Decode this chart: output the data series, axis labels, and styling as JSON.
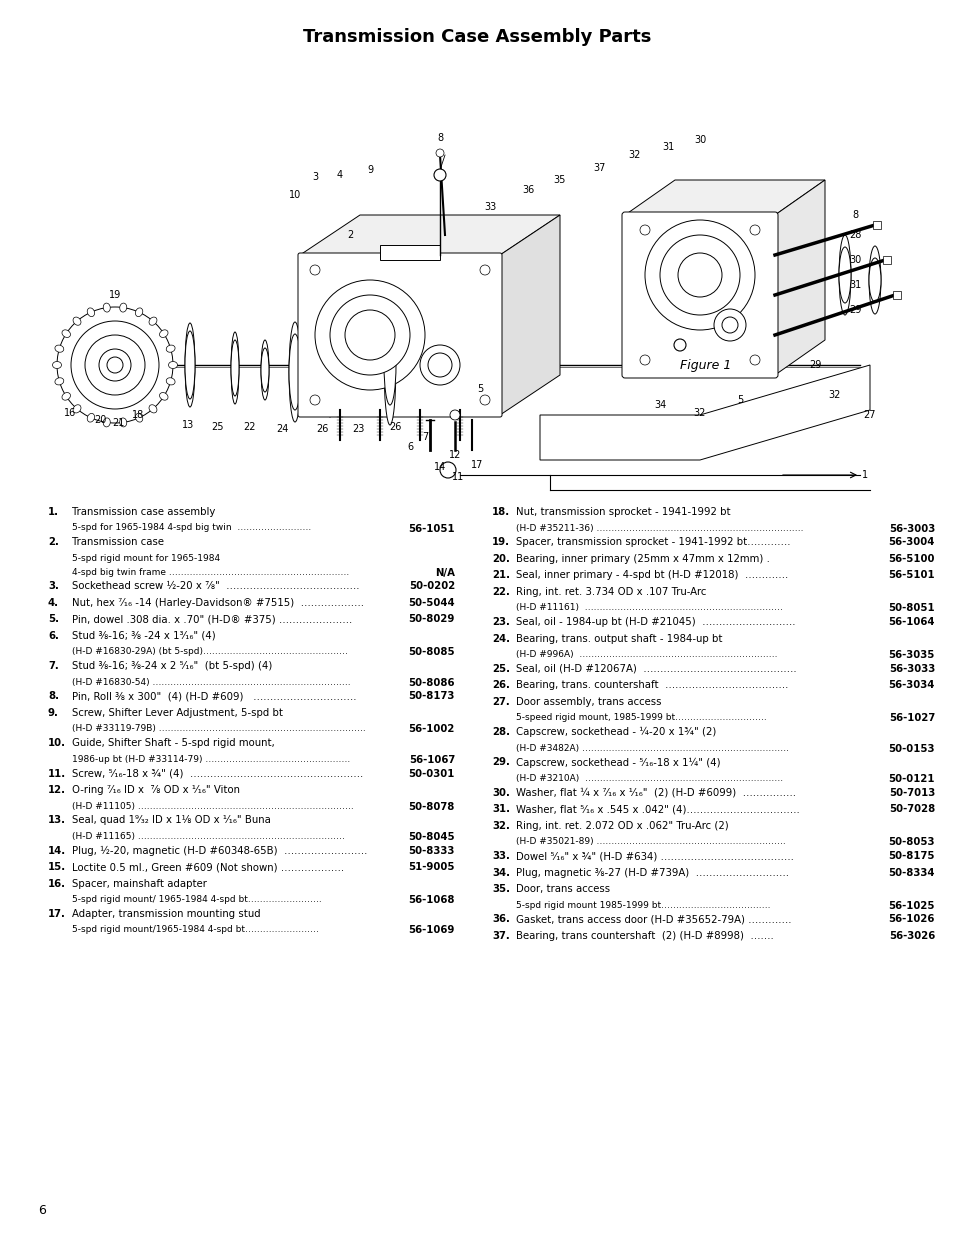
{
  "title": "Transmission Case Assembly Parts",
  "background_color": "#ffffff",
  "text_color": "#000000",
  "page_number": "6",
  "left_column": [
    {
      "num": "1.",
      "main": "Transmission case assembly",
      "sub": "5-spd for 1965-1984 4-spd big twin  …………………….",
      "part": "56-1051",
      "sub_has_part": true
    },
    {
      "num": "2.",
      "main": "Transmission case",
      "sub": "5-spd rigid mount for 1965-1984\n4-spd big twin frame …………………………………………………….",
      "part": "N/A",
      "sub_has_part": true
    },
    {
      "num": "3.",
      "main": "Sockethead screw ½-20 x ⅞\"  ………………………………….",
      "sub": "",
      "part": "50-0202",
      "sub_has_part": false
    },
    {
      "num": "4.",
      "main": "Nut, hex ⁷⁄₁₆ -14 (Harley-Davidson® #7515)  ……………….",
      "sub": "",
      "part": "50-5044",
      "sub_has_part": false
    },
    {
      "num": "5.",
      "main": "Pin, dowel .308 dia. x .70\" (H-D® #375) ………………….",
      "sub": "",
      "part": "50-8029",
      "sub_has_part": false
    },
    {
      "num": "6.",
      "main": "Stud ⅜-16; ⅜ -24 x 1³⁄₁₆\" (4)",
      "sub": "(H-D #16830-29A) (bt 5-spd)………………………………………….",
      "part": "50-8085",
      "sub_has_part": true
    },
    {
      "num": "7.",
      "main": "Stud ⅜-16; ⅜-24 x 2 ⁵⁄₁₆\"  (bt 5-spd) (4)",
      "sub": "(H-D #16830-54) ………………………………………………………….",
      "part": "50-8086",
      "sub_has_part": true
    },
    {
      "num": "8.",
      "main": "Pin, Roll ⅜ x 300\"  (4) (H-D #609)   ………………………….",
      "sub": "",
      "part": "50-8173",
      "sub_has_part": false
    },
    {
      "num": "9.",
      "main": "Screw, Shifter Lever Adjustment, 5-spd bt",
      "sub": "(H-D #33119-79B) …………………………………………………………….",
      "part": "56-1002",
      "sub_has_part": true
    },
    {
      "num": "10.",
      "main": "Guide, Shifter Shaft - 5-spd rigid mount,",
      "sub": "1986-up bt (H-D #33114-79) ………………………………………….",
      "part": "56-1067",
      "sub_has_part": true
    },
    {
      "num": "11.",
      "main": "Screw, ⁵⁄₁₆-18 x ¾\" (4)  …………………………………………….",
      "sub": "",
      "part": "50-0301",
      "sub_has_part": false
    },
    {
      "num": "12.",
      "main": "O-ring ⁷⁄₁₆ ID x  ⅞ OD x ¹⁄₁₆\" Viton",
      "sub": "(H-D #11105) ……………………………………………………………….",
      "part": "50-8078",
      "sub_has_part": true
    },
    {
      "num": "13.",
      "main": "Seal, quad 1⁹⁄₃₂ ID x 1⅛ OD x ¹⁄₁₆\" Buna",
      "sub": "(H-D #11165) …………………………………………………………….",
      "part": "50-8045",
      "sub_has_part": true
    },
    {
      "num": "14.",
      "main": "Plug, ½-20, magnetic (H-D #60348-65B)  …………………….",
      "sub": "",
      "part": "50-8333",
      "sub_has_part": false
    },
    {
      "num": "15.",
      "main": "Loctite 0.5 ml., Green #609 (Not shown) ……………….",
      "sub": "",
      "part": "51-9005",
      "sub_has_part": false
    },
    {
      "num": "16.",
      "main": "Spacer, mainshaft adapter",
      "sub": "5-spd rigid mount/ 1965-1984 4-spd bt…………………….",
      "part": "56-1068",
      "sub_has_part": true
    },
    {
      "num": "17.",
      "main": "Adapter, transmission mounting stud",
      "sub": "5-spd rigid mount/1965-1984 4-spd bt…………………….",
      "part": "56-1069",
      "sub_has_part": true
    }
  ],
  "right_column": [
    {
      "num": "18.",
      "main": "Nut, transmission sprocket - 1941-1992 bt",
      "sub": "(H-D #35211-36) …………………………………………………………….",
      "part": "56-3003",
      "sub_has_part": true
    },
    {
      "num": "19.",
      "main": "Spacer, transmission sprocket - 1941-1992 bt………….",
      "sub": "",
      "part": "56-3004",
      "sub_has_part": false
    },
    {
      "num": "20.",
      "main": "Bearing, inner primary (25mm x 47mm x 12mm) .",
      "sub": "",
      "part": "56-5100",
      "sub_has_part": false
    },
    {
      "num": "21.",
      "main": "Seal, inner primary - 4-spd bt (H-D #12018)  ………….",
      "sub": "",
      "part": "56-5101",
      "sub_has_part": false
    },
    {
      "num": "22.",
      "main": "Ring, int. ret. 3.734 OD x .107 Tru-Arc",
      "sub": "(H-D #11161)  ………………………………………………………….",
      "part": "50-8051",
      "sub_has_part": true
    },
    {
      "num": "23.",
      "main": "Seal, oil - 1984-up bt (H-D #21045)  ……………………….",
      "sub": "",
      "part": "56-1064",
      "sub_has_part": false
    },
    {
      "num": "24.",
      "main": "Bearing, trans. output shaft - 1984-up bt",
      "sub": "(H-D #996A)  ………………………………………………………….",
      "part": "56-3035",
      "sub_has_part": true
    },
    {
      "num": "25.",
      "main": "Seal, oil (H-D #12067A)  ……………………………………….",
      "sub": "",
      "part": "56-3033",
      "sub_has_part": false
    },
    {
      "num": "26.",
      "main": "Bearing, trans. countershaft  ……………………………….",
      "sub": "",
      "part": "56-3034",
      "sub_has_part": false
    },
    {
      "num": "27.",
      "main": "Door assembly, trans access",
      "sub": "5-speed rigid mount, 1985-1999 bt………………………….",
      "part": "56-1027",
      "sub_has_part": true
    },
    {
      "num": "28.",
      "main": "Capscrew, sockethead - ¼-20 x 1¾\" (2)",
      "sub": "(H-D #3482A) …………………………………………………………….",
      "part": "50-0153",
      "sub_has_part": true
    },
    {
      "num": "29.",
      "main": "Capscrew, sockethead - ⁵⁄₁₆-18 x 1¼\" (4)",
      "sub": "(H-D #3210A)  ………………………………………………………….",
      "part": "50-0121",
      "sub_has_part": true
    },
    {
      "num": "30.",
      "main": "Washer, flat ¼ x ⁷⁄₁₆ x ¹⁄₁₆\"  (2) (H-D #6099)  …………….",
      "sub": "",
      "part": "50-7013",
      "sub_has_part": false
    },
    {
      "num": "31.",
      "main": "Washer, flat ⁵⁄₁₆ x .545 x .042\" (4)…………………………….",
      "sub": "",
      "part": "50-7028",
      "sub_has_part": false
    },
    {
      "num": "32.",
      "main": "Ring, int. ret. 2.072 OD x .062\" Tru-Arc (2)",
      "sub": "(H-D #35021-89) ……………………………………………………….",
      "part": "50-8053",
      "sub_has_part": true
    },
    {
      "num": "33.",
      "main": "Dowel ⁵⁄₁₆\" x ¾\" (H-D #634) ………………………………….",
      "sub": "",
      "part": "50-8175",
      "sub_has_part": false
    },
    {
      "num": "34.",
      "main": "Plug, magnetic ⅜-27 (H-D #739A)  ……………………….",
      "sub": "",
      "part": "50-8334",
      "sub_has_part": false
    },
    {
      "num": "35.",
      "main": "Door, trans access",
      "sub": "5-spd rigid mount 1985-1999 bt……………………………….",
      "part": "56-1025",
      "sub_has_part": true
    },
    {
      "num": "36.",
      "main": "Gasket, trans access door (H-D #35652-79A) ………….",
      "sub": "",
      "part": "56-1026",
      "sub_has_part": false
    },
    {
      "num": "37.",
      "main": "Bearing, trans countershaft  (2) (H-D #8998)  …….",
      "sub": "",
      "part": "56-3026",
      "sub_has_part": false
    }
  ],
  "diagram": {
    "figure_label": "Figure 1"
  }
}
